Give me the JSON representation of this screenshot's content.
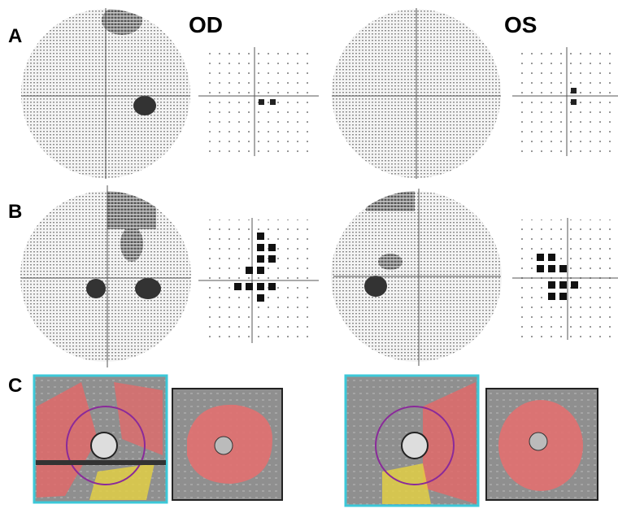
{
  "eye_labels": {
    "right": "OD",
    "left": "OS"
  },
  "panel_labels": [
    "A",
    "B",
    "C"
  ]
}
